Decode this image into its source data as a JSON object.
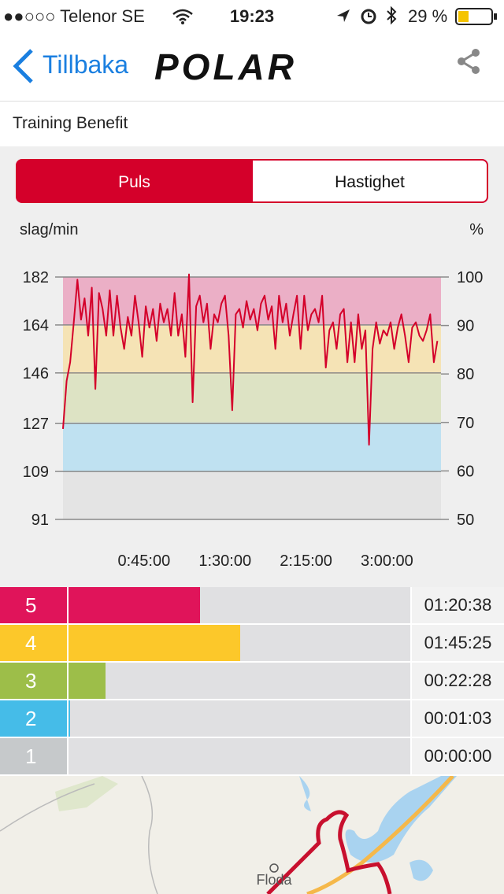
{
  "status_bar": {
    "carrier": "●●○○○ Telenor SE",
    "time": "19:23",
    "battery": "29 %"
  },
  "nav": {
    "back": "Tillbaka",
    "logo": "POLAR"
  },
  "section_title": "Training Benefit",
  "tabs": [
    "Puls",
    "Hastighet"
  ],
  "chart_data": {
    "type": "line",
    "y_label": "slag/min",
    "y2_label": "%",
    "color": "#d4002a",
    "x": [
      0,
      2,
      4,
      6,
      8,
      10,
      12,
      14,
      16,
      18,
      20,
      22,
      24,
      26,
      28,
      30,
      32,
      34,
      36,
      38,
      40,
      42,
      44,
      46,
      48,
      50,
      52,
      54,
      56,
      58,
      60,
      62,
      64,
      66,
      68,
      70,
      72,
      74,
      76,
      78,
      80,
      82,
      84,
      86,
      88,
      90,
      92,
      94,
      96,
      98,
      100,
      102,
      104,
      106,
      108,
      110,
      112,
      114,
      116,
      118,
      120,
      122,
      124,
      126,
      128,
      130,
      132,
      134,
      136,
      138,
      140,
      142,
      144,
      146,
      148,
      150,
      152,
      154,
      156,
      158,
      160,
      162,
      164,
      166,
      168,
      170,
      172,
      174,
      176,
      178,
      180,
      182,
      184,
      186,
      188,
      190,
      192,
      194,
      196,
      198,
      200,
      202,
      204,
      206,
      208
    ],
    "values": [
      125,
      143,
      150,
      165,
      181,
      166,
      174,
      160,
      178,
      140,
      176,
      170,
      160,
      177,
      160,
      175,
      163,
      155,
      167,
      160,
      175,
      165,
      152,
      171,
      163,
      170,
      158,
      172,
      165,
      170,
      160,
      176,
      160,
      168,
      152,
      183,
      135,
      171,
      175,
      165,
      172,
      155,
      168,
      165,
      172,
      175,
      160,
      132,
      168,
      170,
      163,
      173,
      166,
      170,
      162,
      172,
      175,
      166,
      171,
      155,
      175,
      165,
      172,
      160,
      168,
      175,
      155,
      175,
      162,
      168,
      170,
      165,
      175,
      148,
      162,
      165,
      155,
      168,
      170,
      150,
      165,
      150,
      168,
      155,
      162,
      119,
      155,
      165,
      157,
      162,
      160,
      165,
      155,
      163,
      168,
      160,
      150,
      163,
      165,
      160,
      158,
      162,
      168,
      150,
      158
    ],
    "xlim": [
      0,
      210
    ],
    "xticks": [
      {
        "value": 45,
        "label": "0:45:00"
      },
      {
        "value": 90,
        "label": "1:30:00"
      },
      {
        "value": 135,
        "label": "2:15:00"
      },
      {
        "value": 180,
        "label": "3:00:00"
      }
    ],
    "ylim": [
      91,
      182
    ],
    "yticks": [
      91,
      109,
      127,
      146,
      164,
      182
    ],
    "y2lim": [
      50,
      100
    ],
    "y2ticks": [
      50,
      60,
      70,
      80,
      90,
      100
    ],
    "bands": [
      {
        "from": 50,
        "to": 60,
        "color": "#e4e4e4"
      },
      {
        "from": 60,
        "to": 70,
        "color": "#bfe1f1"
      },
      {
        "from": 70,
        "to": 80,
        "color": "#dde3c4"
      },
      {
        "from": 80,
        "to": 90,
        "color": "#f5e3b5"
      },
      {
        "from": 90,
        "to": 100,
        "color": "#ebafc6"
      }
    ],
    "grid": true
  },
  "zones": {
    "labels": [
      "5",
      "4",
      "3",
      "2",
      "1"
    ],
    "colors": [
      "#e0145a",
      "#fcc82a",
      "#9dbe49",
      "#45bce8",
      "#c6c9cb"
    ],
    "values": [
      4838,
      6325,
      1348,
      63,
      0
    ],
    "value_labels": [
      "01:20:38",
      "01:45:25",
      "00:22:28",
      "00:01:03",
      "00:00:00"
    ]
  },
  "map": {
    "place": "Floda"
  }
}
